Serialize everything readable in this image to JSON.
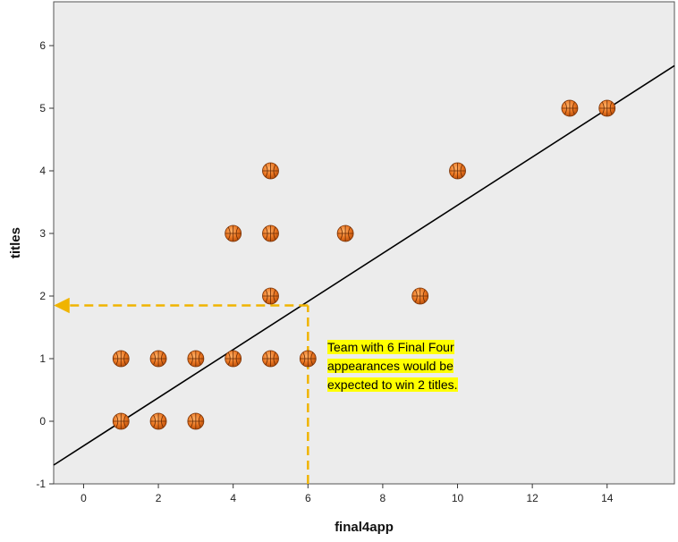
{
  "chart_data": {
    "type": "scatter",
    "xlabel": "final4app",
    "ylabel": "titles",
    "xlim": [
      -0.8,
      15.8
    ],
    "ylim": [
      -1,
      6.7
    ],
    "x_ticks": [
      0,
      2,
      4,
      6,
      8,
      10,
      12,
      14
    ],
    "y_ticks": [
      -1,
      0,
      1,
      2,
      3,
      4,
      5,
      6
    ],
    "grid": false,
    "points": [
      {
        "x": 1,
        "y": 0
      },
      {
        "x": 2,
        "y": 0
      },
      {
        "x": 3,
        "y": 0
      },
      {
        "x": 1,
        "y": 1
      },
      {
        "x": 2,
        "y": 1
      },
      {
        "x": 3,
        "y": 1
      },
      {
        "x": 4,
        "y": 1
      },
      {
        "x": 5,
        "y": 1
      },
      {
        "x": 6,
        "y": 1
      },
      {
        "x": 5,
        "y": 2
      },
      {
        "x": 9,
        "y": 2
      },
      {
        "x": 4,
        "y": 3
      },
      {
        "x": 5,
        "y": 3
      },
      {
        "x": 7,
        "y": 3
      },
      {
        "x": 5,
        "y": 4
      },
      {
        "x": 10,
        "y": 4
      },
      {
        "x": 13,
        "y": 5
      },
      {
        "x": 14,
        "y": 5
      }
    ],
    "fit_line": {
      "x": [
        -0.8,
        15.8
      ],
      "y": [
        -0.7,
        5.68
      ]
    },
    "guide": {
      "x": 6,
      "y": 1.85
    },
    "annotation": "Team with 6 Final Four appearances would be expected to win 2 titles.",
    "colors": {
      "plot_background": "#ececec",
      "point": "#e8731f",
      "fit_line": "#000000",
      "guide": "#f0b400",
      "highlight": "#ffff00"
    },
    "marker_icon": "basketball-icon"
  }
}
